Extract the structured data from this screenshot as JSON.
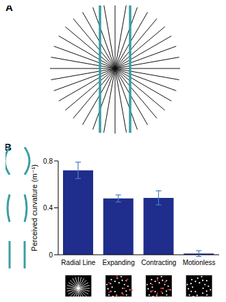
{
  "chart_data": {
    "type": "bar",
    "annotations": [
      "A",
      "B"
    ],
    "ylabel": "Perceived curvature (m⁻¹)",
    "categories": [
      "Radial Line",
      "Expanding",
      "Contracting",
      "Motionless"
    ],
    "values": [
      0.72,
      0.48,
      0.485,
      0.01
    ],
    "errors": [
      0.07,
      0.03,
      0.06,
      0.025
    ],
    "color": "#1f2d8c",
    "ylim": [
      0,
      0.8
    ],
    "yticks": [
      0,
      0.4,
      0.8
    ],
    "grid": false
  }
}
